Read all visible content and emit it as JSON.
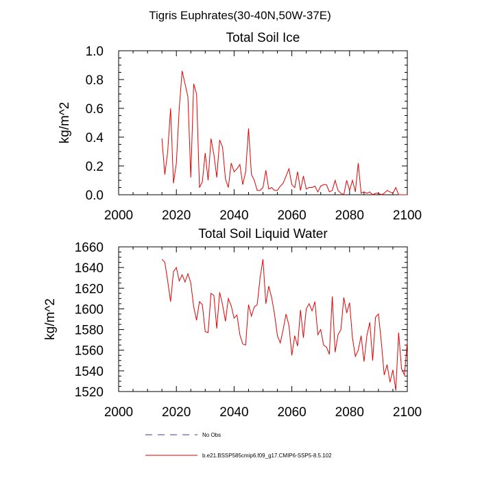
{
  "figure": {
    "main_title": "Tigris Euphrates(30-40N,50W-37E)"
  },
  "legend": [
    {
      "label": "No Obs",
      "color": "#3a3aa8",
      "style": "dashed"
    },
    {
      "label": "b.e21.BSSP585cmip6.f09_g17.CMIP6-SSP5-8.5.102",
      "color": "#e00000",
      "style": "solid"
    }
  ],
  "chart_data": [
    {
      "type": "line",
      "title": "Total Soil Ice",
      "xlabel": "",
      "ylabel": "kg/m^2",
      "xlim": [
        2000,
        2100
      ],
      "ylim": [
        0.0,
        1.0
      ],
      "xticks": [
        2000,
        2020,
        2040,
        2060,
        2080,
        2100
      ],
      "yticks": [
        0.0,
        0.2,
        0.4,
        0.6,
        0.8,
        1.0
      ],
      "ytick_labels": [
        "0.0",
        "0.2",
        "0.4",
        "0.6",
        "0.8",
        "1.0"
      ],
      "grid": false,
      "series": [
        {
          "color": "#e00000",
          "x": [
            2015,
            2016,
            2017,
            2018,
            2019,
            2020,
            2021,
            2022,
            2023,
            2024,
            2025,
            2026,
            2027,
            2028,
            2029,
            2030,
            2031,
            2032,
            2033,
            2034,
            2035,
            2036,
            2037,
            2038,
            2039,
            2040,
            2041,
            2042,
            2043,
            2044,
            2045,
            2046,
            2047,
            2048,
            2049,
            2050,
            2051,
            2052,
            2053,
            2054,
            2055,
            2056,
            2057,
            2058,
            2059,
            2060,
            2061,
            2062,
            2063,
            2064,
            2065,
            2066,
            2067,
            2068,
            2069,
            2070,
            2071,
            2072,
            2073,
            2074,
            2075,
            2076,
            2077,
            2078,
            2079,
            2080,
            2081,
            2082,
            2083,
            2084,
            2085,
            2086,
            2087,
            2088,
            2089,
            2090,
            2091,
            2092,
            2093,
            2094,
            2095,
            2096,
            2097,
            2098,
            2099,
            2100
          ],
          "y": [
            0.39,
            0.14,
            0.3,
            0.6,
            0.08,
            0.22,
            0.6,
            0.86,
            0.77,
            0.68,
            0.12,
            0.77,
            0.7,
            0.05,
            0.09,
            0.29,
            0.1,
            0.39,
            0.28,
            0.12,
            0.38,
            0.33,
            0.11,
            0.05,
            0.22,
            0.16,
            0.18,
            0.21,
            0.07,
            0.16,
            0.46,
            0.14,
            0.1,
            0.03,
            0.03,
            0.05,
            0.17,
            0.04,
            0.05,
            0.03,
            0.03,
            0.06,
            0.08,
            0.13,
            0.18,
            0.07,
            0.05,
            0.16,
            0.03,
            0.13,
            0.04,
            0.05,
            0.05,
            0.06,
            0.02,
            0.06,
            0.07,
            0.07,
            0.02,
            0.03,
            0.1,
            0.03,
            0.01,
            0.0,
            0.1,
            0.03,
            0.1,
            0.02,
            0.22,
            0.01,
            0.02,
            0.01,
            0.02,
            0.0,
            0.01,
            0.01,
            0.0,
            0.01,
            0.03,
            0.02,
            0.01,
            0.05,
            0.0,
            0.0,
            0.0,
            0.0
          ]
        }
      ]
    },
    {
      "type": "line",
      "title": "Total Soil Liquid Water",
      "xlabel": "",
      "ylabel": "kg/m^2",
      "xlim": [
        2000,
        2100
      ],
      "ylim": [
        1520,
        1660
      ],
      "xticks": [
        2000,
        2020,
        2040,
        2060,
        2080,
        2100
      ],
      "yticks": [
        1520,
        1540,
        1560,
        1580,
        1600,
        1620,
        1640,
        1660
      ],
      "ytick_labels": [
        "1520",
        "1540",
        "1560",
        "1580",
        "1600",
        "1620",
        "1640",
        "1660"
      ],
      "grid": false,
      "series": [
        {
          "color": "#e00000",
          "x": [
            2015,
            2016,
            2017,
            2018,
            2019,
            2020,
            2021,
            2022,
            2023,
            2024,
            2025,
            2026,
            2027,
            2028,
            2029,
            2030,
            2031,
            2032,
            2033,
            2034,
            2035,
            2036,
            2037,
            2038,
            2039,
            2040,
            2041,
            2042,
            2043,
            2044,
            2045,
            2046,
            2047,
            2048,
            2049,
            2050,
            2051,
            2052,
            2053,
            2054,
            2055,
            2056,
            2057,
            2058,
            2059,
            2060,
            2061,
            2062,
            2063,
            2064,
            2065,
            2066,
            2067,
            2068,
            2069,
            2070,
            2071,
            2072,
            2073,
            2074,
            2075,
            2076,
            2077,
            2078,
            2079,
            2080,
            2081,
            2082,
            2083,
            2084,
            2085,
            2086,
            2087,
            2088,
            2089,
            2090,
            2091,
            2092,
            2093,
            2094,
            2095,
            2096,
            2097,
            2098,
            2099,
            2100
          ],
          "y": [
            1648,
            1645,
            1627,
            1607,
            1636,
            1640,
            1627,
            1633,
            1626,
            1634,
            1625,
            1602,
            1589,
            1607,
            1604,
            1578,
            1577,
            1615,
            1613,
            1581,
            1616,
            1604,
            1588,
            1610,
            1603,
            1591,
            1594,
            1575,
            1566,
            1565,
            1604,
            1593,
            1602,
            1604,
            1630,
            1648,
            1605,
            1622,
            1611,
            1595,
            1574,
            1567,
            1580,
            1595,
            1584,
            1555,
            1574,
            1564,
            1599,
            1572,
            1600,
            1605,
            1598,
            1607,
            1575,
            1580,
            1565,
            1563,
            1556,
            1612,
            1558,
            1575,
            1580,
            1611,
            1596,
            1606,
            1572,
            1554,
            1560,
            1574,
            1549,
            1574,
            1587,
            1550,
            1592,
            1595,
            1568,
            1536,
            1546,
            1529,
            1541,
            1521,
            1577,
            1542,
            1536,
            1568
          ]
        }
      ]
    }
  ]
}
